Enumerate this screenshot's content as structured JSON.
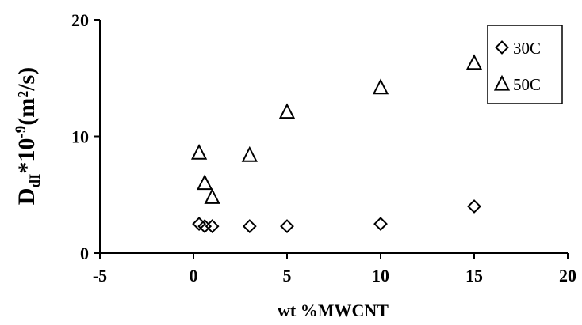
{
  "chart_data": {
    "type": "scatter",
    "title": "",
    "xlabel": "wt %MWCNT",
    "ylabel": {
      "main": "D",
      "sub": "dI",
      "mid": "*10",
      "sup": "-9",
      "tail": "(m²/s)"
    },
    "xlim": [
      -5,
      20
    ],
    "ylim": [
      0,
      20
    ],
    "x_ticks": [
      -5,
      0,
      5,
      10,
      15,
      20
    ],
    "y_ticks": [
      0,
      10,
      20
    ],
    "grid": false,
    "legend_position": "top-right",
    "series": [
      {
        "name": "30C",
        "marker": "diamond",
        "points": [
          {
            "x": 0.3,
            "y": 2.5
          },
          {
            "x": 0.6,
            "y": 2.3
          },
          {
            "x": 1.0,
            "y": 2.3
          },
          {
            "x": 3.0,
            "y": 2.3
          },
          {
            "x": 5.0,
            "y": 2.3
          },
          {
            "x": 10.0,
            "y": 2.5
          },
          {
            "x": 15.0,
            "y": 4.0
          }
        ]
      },
      {
        "name": "50C",
        "marker": "triangle",
        "points": [
          {
            "x": 0.3,
            "y": 8.6
          },
          {
            "x": 0.6,
            "y": 6.0
          },
          {
            "x": 1.0,
            "y": 4.8
          },
          {
            "x": 3.0,
            "y": 8.4
          },
          {
            "x": 5.0,
            "y": 12.1
          },
          {
            "x": 10.0,
            "y": 14.2
          },
          {
            "x": 15.0,
            "y": 16.3
          }
        ]
      }
    ]
  }
}
